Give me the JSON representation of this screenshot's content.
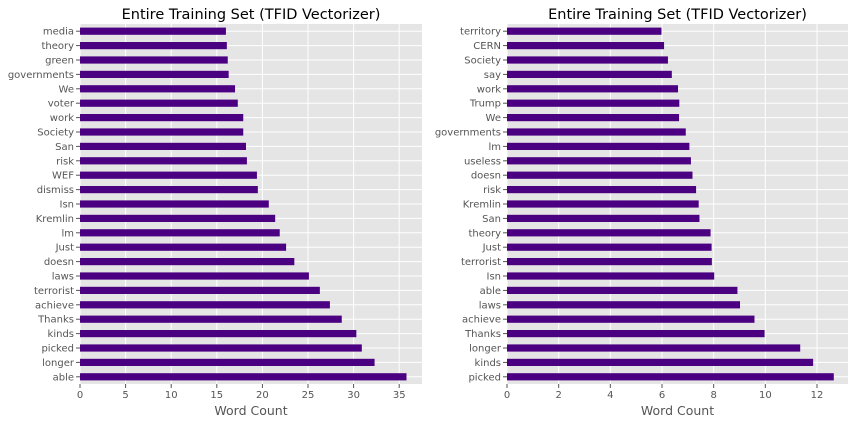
{
  "chart_data": [
    {
      "type": "bar",
      "orientation": "horizontal",
      "title": "Entire Training Set (TFID Vectorizer)",
      "xlabel": "Word Count",
      "ylabel": "",
      "xlim": [
        0,
        37.5
      ],
      "xticks": [
        0,
        5,
        10,
        15,
        20,
        25,
        30,
        35
      ],
      "grid": true,
      "bar_color": "#4B0082",
      "background_color": "#E5E5E5",
      "categories": [
        "able",
        "longer",
        "picked",
        "kinds",
        "Thanks",
        "achieve",
        "terrorist",
        "laws",
        "doesn",
        "Just",
        "lm",
        "Kremlin",
        "Isn",
        "dismiss",
        "WEF",
        "risk",
        "San",
        "Society",
        "work",
        "voter",
        "We",
        "governments",
        "green",
        "theory",
        "media"
      ],
      "values": [
        35.8,
        32.3,
        30.9,
        30.3,
        28.7,
        27.4,
        26.3,
        25.1,
        23.5,
        22.6,
        21.9,
        21.4,
        20.7,
        19.5,
        19.4,
        18.3,
        18.2,
        17.9,
        17.9,
        17.3,
        17.0,
        16.3,
        16.2,
        16.1,
        16.0
      ]
    },
    {
      "type": "bar",
      "orientation": "horizontal",
      "title": "Entire Training Set (TFID Vectorizer)",
      "xlabel": "Word Count",
      "ylabel": "",
      "xlim": [
        0,
        13.2
      ],
      "xticks": [
        0,
        2,
        4,
        6,
        8,
        10,
        12
      ],
      "grid": true,
      "bar_color": "#4B0082",
      "background_color": "#E5E5E5",
      "categories": [
        "picked",
        "kinds",
        "longer",
        "Thanks",
        "achieve",
        "laws",
        "able",
        "Isn",
        "terrorist",
        "Just",
        "theory",
        "San",
        "Kremlin",
        "risk",
        "doesn",
        "useless",
        "lm",
        "governments",
        "We",
        "Trump",
        "work",
        "say",
        "Society",
        "CERN",
        "territory"
      ],
      "values": [
        12.65,
        11.85,
        11.35,
        9.97,
        9.58,
        9.02,
        8.92,
        8.02,
        7.93,
        7.92,
        7.88,
        7.45,
        7.42,
        7.32,
        7.18,
        7.12,
        7.06,
        6.92,
        6.66,
        6.67,
        6.62,
        6.38,
        6.23,
        6.08,
        5.98
      ]
    }
  ]
}
